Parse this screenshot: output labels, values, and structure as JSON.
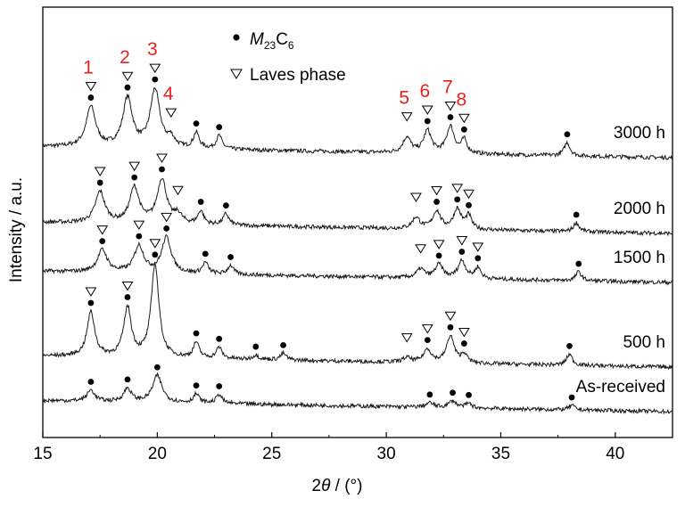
{
  "chart_data": {
    "type": "line",
    "xlabel_prefix": "2",
    "xlabel_symbol": "θ",
    "xlabel_suffix": " / (°)",
    "ylabel": "Intensity / a.u.",
    "xlim": [
      15,
      42.5
    ],
    "xticks": [
      15,
      20,
      25,
      30,
      35,
      40
    ],
    "y_ticks_shown": false,
    "legend": {
      "position": "top-center",
      "items": [
        {
          "marker": "dot",
          "label_italic": "M",
          "label_sub1": "23",
          "label_mid": "C",
          "label_sub2": "6"
        },
        {
          "marker": "triangle",
          "label": "Laves phase"
        }
      ]
    },
    "peak_numbers": [
      {
        "label": "1",
        "x": 17.1,
        "series": "3000 h"
      },
      {
        "label": "2",
        "x": 18.7,
        "series": "3000 h"
      },
      {
        "label": "3",
        "x": 19.9,
        "series": "3000 h"
      },
      {
        "label": "4",
        "x": 20.6,
        "series": "3000 h"
      },
      {
        "label": "5",
        "x": 30.9,
        "series": "3000 h"
      },
      {
        "label": "6",
        "x": 31.8,
        "series": "3000 h"
      },
      {
        "label": "7",
        "x": 32.8,
        "series": "3000 h"
      },
      {
        "label": "8",
        "x": 33.4,
        "series": "3000 h"
      }
    ],
    "series": [
      {
        "name": "3000 h",
        "baseline": 5.7,
        "peaks": [
          [
            17.1,
            0.9,
            0.25
          ],
          [
            18.7,
            1.1,
            0.25
          ],
          [
            19.9,
            1.3,
            0.25
          ],
          [
            20.6,
            0.2,
            0.2
          ],
          [
            21.7,
            0.35,
            0.15
          ],
          [
            22.7,
            0.3,
            0.15
          ],
          [
            30.9,
            0.35,
            0.2
          ],
          [
            31.8,
            0.5,
            0.2
          ],
          [
            32.8,
            0.6,
            0.2
          ],
          [
            33.4,
            0.3,
            0.15
          ],
          [
            37.9,
            0.3,
            0.15
          ]
        ],
        "dots": [
          17.1,
          18.7,
          19.9,
          21.7,
          22.7,
          31.8,
          32.8,
          33.4,
          37.9
        ],
        "triangles": [
          17.1,
          18.7,
          19.9,
          20.6,
          30.9,
          31.8,
          32.8,
          33.4
        ]
      },
      {
        "name": "2000 h",
        "baseline": 4.0,
        "peaks": [
          [
            17.5,
            0.7,
            0.25
          ],
          [
            19.0,
            0.8,
            0.25
          ],
          [
            20.2,
            1.0,
            0.25
          ],
          [
            20.9,
            0.2,
            0.2
          ],
          [
            21.9,
            0.3,
            0.15
          ],
          [
            23.0,
            0.25,
            0.15
          ],
          [
            31.3,
            0.25,
            0.2
          ],
          [
            32.2,
            0.4,
            0.2
          ],
          [
            33.1,
            0.45,
            0.2
          ],
          [
            33.6,
            0.3,
            0.15
          ],
          [
            38.3,
            0.2,
            0.15
          ]
        ],
        "dots": [
          17.5,
          19.0,
          20.2,
          21.9,
          23.0,
          32.2,
          33.1,
          33.6,
          38.3
        ],
        "triangles": [
          17.5,
          19.0,
          20.2,
          20.9,
          31.3,
          32.2,
          33.1,
          33.6
        ]
      },
      {
        "name": "1500 h",
        "baseline": 2.9,
        "peaks": [
          [
            17.6,
            0.5,
            0.25
          ],
          [
            19.2,
            0.6,
            0.25
          ],
          [
            20.4,
            0.8,
            0.25
          ],
          [
            22.1,
            0.25,
            0.15
          ],
          [
            23.2,
            0.2,
            0.15
          ],
          [
            31.5,
            0.2,
            0.2
          ],
          [
            32.3,
            0.3,
            0.2
          ],
          [
            33.3,
            0.4,
            0.2
          ],
          [
            34.0,
            0.25,
            0.15
          ],
          [
            38.4,
            0.2,
            0.15
          ]
        ],
        "dots": [
          17.6,
          19.2,
          20.4,
          22.1,
          23.2,
          32.3,
          33.3,
          34.0,
          38.4
        ],
        "triangles": [
          17.6,
          19.2,
          20.4,
          31.5,
          32.3,
          33.3,
          34.0
        ]
      },
      {
        "name": "500 h",
        "baseline": 1.0,
        "peaks": [
          [
            17.1,
            1.0,
            0.2
          ],
          [
            18.7,
            1.1,
            0.2
          ],
          [
            19.9,
            2.1,
            0.2
          ],
          [
            21.7,
            0.35,
            0.15
          ],
          [
            22.7,
            0.25,
            0.15
          ],
          [
            24.3,
            0.1,
            0.15
          ],
          [
            25.5,
            0.15,
            0.15
          ],
          [
            30.9,
            0.1,
            0.2
          ],
          [
            31.8,
            0.3,
            0.2
          ],
          [
            32.8,
            0.6,
            0.2
          ],
          [
            33.4,
            0.2,
            0.15
          ],
          [
            38.0,
            0.25,
            0.15
          ]
        ],
        "dots": [
          17.1,
          18.7,
          19.9,
          21.7,
          22.7,
          24.3,
          25.5,
          31.8,
          32.8,
          33.4,
          38.0
        ],
        "triangles": [
          17.1,
          18.7,
          19.9,
          30.9,
          31.8,
          32.8,
          33.4
        ]
      },
      {
        "name": "As-received",
        "baseline": 0.0,
        "peaks": [
          [
            17.1,
            0.25,
            0.2
          ],
          [
            18.7,
            0.3,
            0.2
          ],
          [
            20.0,
            0.6,
            0.25
          ],
          [
            21.7,
            0.2,
            0.15
          ],
          [
            22.7,
            0.2,
            0.15
          ],
          [
            31.9,
            0.1,
            0.2
          ],
          [
            32.9,
            0.15,
            0.2
          ],
          [
            33.6,
            0.1,
            0.15
          ],
          [
            38.1,
            0.1,
            0.15
          ]
        ],
        "dots": [
          17.1,
          18.7,
          20.0,
          21.7,
          22.7,
          31.9,
          32.9,
          33.6,
          38.1
        ],
        "triangles": []
      }
    ]
  },
  "colors": {
    "line": "#1a1a1a",
    "axis": "#000000",
    "peak_number": "#e8211b",
    "marker": "#000000",
    "triangle_stroke": "#000000"
  }
}
